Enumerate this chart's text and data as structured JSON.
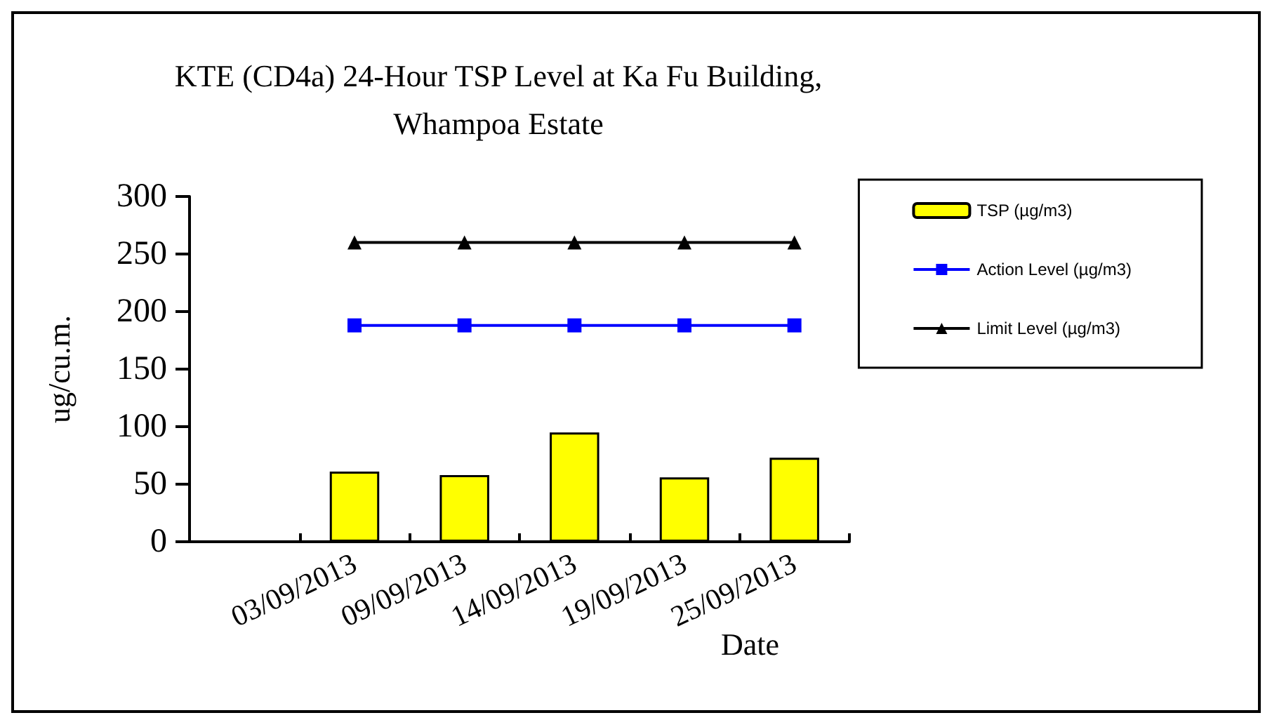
{
  "chart_data": {
    "type": "bar",
    "title": "KTE (CD4a) 24-Hour TSP Level at Ka Fu Building,\nWhampoa Estate",
    "xlabel": "Date",
    "ylabel": "ug/cu.m.",
    "categories": [
      null,
      "03/09/2013",
      "09/09/2013",
      "14/09/2013",
      "19/09/2013",
      "25/09/2013"
    ],
    "series": [
      {
        "name": "TSP (µg/m3)",
        "color": "#ffff00",
        "values": [
          null,
          61,
          58,
          95,
          56,
          73
        ]
      },
      {
        "name": "Action Level (µg/m3)",
        "type": "line",
        "color": "#0000ff",
        "marker": "square",
        "values": [
          null,
          188,
          188,
          188,
          188,
          188
        ]
      },
      {
        "name": "Limit Level (µg/m3)",
        "type": "line",
        "color": "#000000",
        "marker": "triangle",
        "values": [
          null,
          260,
          260,
          260,
          260,
          260
        ]
      }
    ],
    "ylim": [
      0,
      300
    ],
    "yticks": [
      0,
      50,
      100,
      150,
      200,
      250,
      300
    ],
    "grid": false,
    "legend": "top right"
  }
}
